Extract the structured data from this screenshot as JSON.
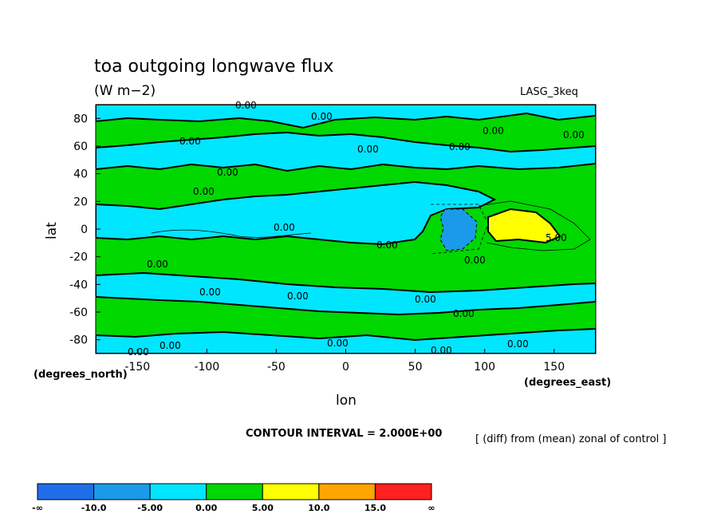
{
  "chart_data": {
    "type": "contour",
    "title": "toa outgoing longwave flux",
    "units": "(W m−2)",
    "dataset": "LASG_3keq",
    "xlabel": "lon",
    "ylabel": "lat",
    "x_units": "(degrees_east)",
    "y_units": "(degrees_north)",
    "xlim": [
      -180,
      180
    ],
    "ylim": [
      -90,
      90
    ],
    "x_ticks": [
      -150,
      -100,
      -50,
      0,
      50,
      100,
      150
    ],
    "y_ticks": [
      80,
      60,
      40,
      20,
      0,
      -20,
      -40,
      -60,
      -80
    ],
    "contour_interval_text": "CONTOUR INTERVAL = 2.000E+00",
    "description_text": "[ (diff) from (mean) zonal of control ]",
    "contour_label": "0.00",
    "contour_label_5": "5.00",
    "contour_label_10": "10.0",
    "colorbar": {
      "labels": [
        "-∞",
        "-10.0",
        "-5.00",
        "0.00",
        "5.00",
        "10.0",
        "15.0",
        "∞"
      ],
      "colors": [
        "#1f6ee8",
        "#1a9ae8",
        "#00e6ff",
        "#00d800",
        "#ffff00",
        "#ffa500",
        "#ff2020"
      ]
    },
    "colors": {
      "negative_0_to_5": "#00e6ff",
      "positive_0_to_5": "#00d800",
      "positive_5_to_10": "#ffff00",
      "negative_5_to_10": "#1a9ae8"
    }
  }
}
